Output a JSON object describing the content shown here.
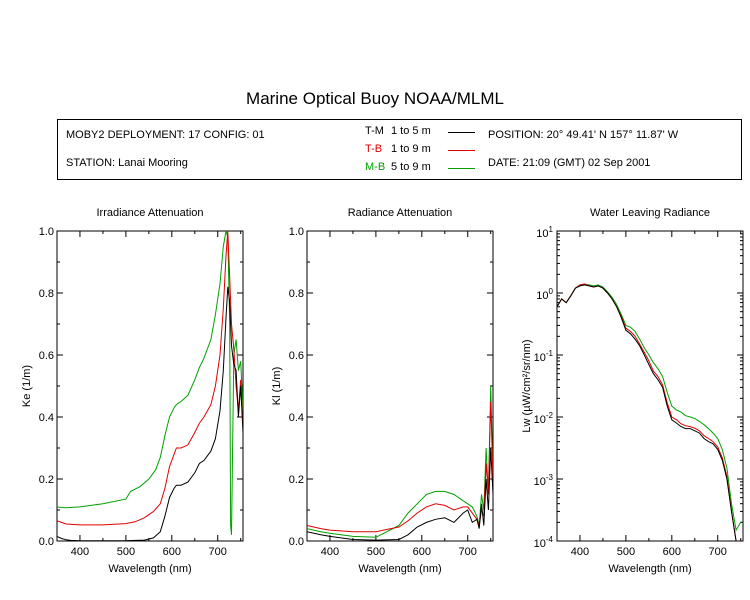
{
  "title": "Marine Optical Buoy NOAA/MLML",
  "info": {
    "deployment": "MOBY2 DEPLOYMENT: 17 CONFIG: 01",
    "station": "STATION: Lanai Mooring",
    "position": "POSITION: 20° 49.41' N   157° 11.87' W",
    "date": "DATE: 21:09 (GMT) 02 Sep 2001"
  },
  "legend": [
    {
      "name": "T-M",
      "range": "1 to 5  m",
      "color": "#000000"
    },
    {
      "name": "T-B",
      "range": "1 to 9  m",
      "color": "#e00000"
    },
    {
      "name": "M-B",
      "range": "5 to 9  m",
      "color": "#00a000"
    }
  ],
  "chart_data": [
    {
      "type": "line",
      "title": "Irradiance Attenuation",
      "xlabel": "Wavelength (nm)",
      "ylabel": "Ke  (1/m)",
      "xlim": [
        350,
        755
      ],
      "ylim": [
        0,
        1.0
      ],
      "xticks": [
        "400",
        "500",
        "600",
        "700"
      ],
      "yticks": [
        "0.0",
        "0.2",
        "0.4",
        "0.6",
        "0.8",
        "1.0"
      ],
      "series": [
        {
          "name": "T-M",
          "color": "#000000",
          "x": [
            350,
            360,
            370,
            380,
            400,
            450,
            500,
            540,
            560,
            575,
            585,
            595,
            605,
            610,
            620,
            635,
            650,
            660,
            670,
            685,
            695,
            705,
            712,
            718,
            722,
            726,
            730,
            735,
            740,
            745,
            750,
            755
          ],
          "y": [
            0.015,
            0.008,
            0.004,
            0.002,
            0.001,
            0.001,
            0.001,
            0.003,
            0.01,
            0.03,
            0.08,
            0.14,
            0.17,
            0.18,
            0.18,
            0.19,
            0.22,
            0.25,
            0.26,
            0.29,
            0.33,
            0.42,
            0.55,
            0.72,
            0.82,
            0.77,
            0.63,
            0.57,
            0.55,
            0.4,
            0.5,
            0.35
          ]
        },
        {
          "name": "T-B",
          "color": "#e00000",
          "x": [
            350,
            360,
            370,
            400,
            450,
            500,
            520,
            540,
            560,
            575,
            585,
            595,
            605,
            610,
            620,
            635,
            650,
            660,
            670,
            685,
            695,
            705,
            712,
            718,
            722,
            726,
            730,
            735,
            740,
            745,
            750,
            755
          ],
          "y": [
            0.065,
            0.06,
            0.055,
            0.052,
            0.052,
            0.056,
            0.062,
            0.075,
            0.095,
            0.12,
            0.17,
            0.24,
            0.28,
            0.3,
            0.3,
            0.31,
            0.35,
            0.38,
            0.4,
            0.44,
            0.5,
            0.6,
            0.75,
            0.92,
            1.0,
            0.85,
            0.7,
            0.62,
            0.5,
            0.42,
            0.52,
            0.36
          ]
        },
        {
          "name": "M-B",
          "color": "#00a000",
          "x": [
            350,
            360,
            370,
            400,
            450,
            500,
            510,
            530,
            550,
            565,
            575,
            585,
            595,
            605,
            610,
            620,
            635,
            650,
            660,
            670,
            685,
            695,
            705,
            712,
            718,
            722,
            726,
            728,
            730,
            735,
            740,
            745,
            750,
            755
          ],
          "y": [
            0.11,
            0.108,
            0.107,
            0.11,
            0.12,
            0.135,
            0.16,
            0.175,
            0.2,
            0.23,
            0.27,
            0.34,
            0.4,
            0.43,
            0.44,
            0.45,
            0.47,
            0.52,
            0.56,
            0.59,
            0.65,
            0.73,
            0.83,
            0.95,
            1.0,
            0.98,
            0.7,
            0.05,
            0.02,
            0.6,
            0.65,
            0.55,
            0.58,
            0.42
          ]
        }
      ]
    },
    {
      "type": "line",
      "title": "Radiance Attenuation",
      "xlabel": "Wavelength (nm)",
      "ylabel": "Kl  (1/m)",
      "xlim": [
        350,
        755
      ],
      "ylim": [
        0,
        1.0
      ],
      "xticks": [
        "400",
        "500",
        "600",
        "700"
      ],
      "yticks": [
        "0.0",
        "0.2",
        "0.4",
        "0.6",
        "0.8",
        "1.0"
      ],
      "series": [
        {
          "name": "T-M",
          "color": "#000000",
          "x": [
            350,
            380,
            400,
            450,
            500,
            550,
            570,
            590,
            610,
            630,
            650,
            670,
            690,
            700,
            710,
            720,
            725,
            730,
            735,
            740,
            745,
            750,
            755
          ],
          "y": [
            0.03,
            0.02,
            0.015,
            0.005,
            0.003,
            0.005,
            0.02,
            0.045,
            0.06,
            0.07,
            0.075,
            0.06,
            0.09,
            0.1,
            0.06,
            0.07,
            0.04,
            0.12,
            0.05,
            0.2,
            0.1,
            0.3,
            0.15
          ]
        },
        {
          "name": "T-B",
          "color": "#e00000",
          "x": [
            350,
            380,
            400,
            450,
            500,
            550,
            570,
            590,
            610,
            630,
            650,
            670,
            690,
            700,
            710,
            720,
            725,
            730,
            735,
            740,
            745,
            750,
            755
          ],
          "y": [
            0.05,
            0.04,
            0.035,
            0.03,
            0.03,
            0.045,
            0.065,
            0.09,
            0.11,
            0.12,
            0.115,
            0.1,
            0.11,
            0.11,
            0.09,
            0.07,
            0.05,
            0.1,
            0.08,
            0.25,
            0.15,
            0.45,
            0.2
          ]
        },
        {
          "name": "M-B",
          "color": "#00a000",
          "x": [
            350,
            380,
            400,
            450,
            500,
            550,
            570,
            590,
            610,
            630,
            650,
            670,
            690,
            700,
            710,
            720,
            725,
            730,
            735,
            740,
            745,
            750,
            755
          ],
          "y": [
            0.04,
            0.03,
            0.025,
            0.015,
            0.012,
            0.05,
            0.09,
            0.12,
            0.15,
            0.16,
            0.16,
            0.15,
            0.13,
            0.12,
            0.11,
            0.08,
            0.05,
            0.15,
            0.1,
            0.3,
            0.15,
            0.5,
            0.2
          ]
        }
      ]
    },
    {
      "type": "line",
      "title": "Water Leaving Radiance",
      "xlabel": "Wavelength (nm)",
      "ylabel": "Lw  (µW/cm²/sr/nm)",
      "yscale": "log",
      "xlim": [
        350,
        755
      ],
      "ylim": [
        0.0001,
        10
      ],
      "xticks": [
        "400",
        "500",
        "600",
        "700"
      ],
      "yticks": [
        {
          "base": "10",
          "exp": "1"
        },
        {
          "base": "10",
          "exp": "0"
        },
        {
          "base": "10",
          "exp": "-1"
        },
        {
          "base": "10",
          "exp": "-2"
        },
        {
          "base": "10",
          "exp": "-3"
        },
        {
          "base": "10",
          "exp": "-4"
        }
      ],
      "series": [
        {
          "name": "T-M",
          "color": "#000000",
          "x": [
            350,
            360,
            370,
            380,
            390,
            400,
            410,
            420,
            430,
            440,
            450,
            460,
            470,
            480,
            490,
            500,
            510,
            520,
            530,
            540,
            550,
            560,
            570,
            580,
            590,
            600,
            610,
            620,
            630,
            640,
            650,
            660,
            670,
            680,
            690,
            700,
            710,
            720,
            730,
            740,
            750
          ],
          "y": [
            0.6,
            0.8,
            0.7,
            0.9,
            1.2,
            1.3,
            1.35,
            1.3,
            1.25,
            1.3,
            1.2,
            1.0,
            0.8,
            0.6,
            0.4,
            0.25,
            0.22,
            0.18,
            0.14,
            0.1,
            0.07,
            0.05,
            0.04,
            0.03,
            0.015,
            0.009,
            0.008,
            0.007,
            0.0065,
            0.0065,
            0.006,
            0.0055,
            0.0045,
            0.004,
            0.0037,
            0.003,
            0.002,
            0.001,
            0.0003,
            0.0001,
            0.0001
          ]
        },
        {
          "name": "T-B",
          "color": "#e00000",
          "x": [
            350,
            360,
            370,
            380,
            390,
            400,
            410,
            420,
            430,
            440,
            450,
            460,
            470,
            480,
            490,
            500,
            510,
            520,
            530,
            540,
            550,
            560,
            570,
            580,
            590,
            600,
            610,
            620,
            630,
            640,
            650,
            660,
            670,
            680,
            690,
            700,
            710,
            720,
            730,
            740,
            750
          ],
          "y": [
            0.6,
            0.8,
            0.7,
            0.9,
            1.2,
            1.35,
            1.4,
            1.3,
            1.25,
            1.3,
            1.2,
            1.0,
            0.8,
            0.6,
            0.42,
            0.27,
            0.24,
            0.2,
            0.15,
            0.11,
            0.08,
            0.055,
            0.045,
            0.033,
            0.017,
            0.01,
            0.009,
            0.0078,
            0.0072,
            0.007,
            0.0066,
            0.006,
            0.005,
            0.0045,
            0.004,
            0.0033,
            0.0022,
            0.0011,
            0.0003,
            0.0001,
            0.0001
          ]
        },
        {
          "name": "M-B",
          "color": "#00a000",
          "x": [
            350,
            360,
            370,
            380,
            390,
            400,
            410,
            420,
            430,
            440,
            450,
            460,
            470,
            480,
            490,
            500,
            510,
            520,
            530,
            540,
            550,
            560,
            570,
            580,
            590,
            600,
            610,
            620,
            630,
            640,
            650,
            660,
            670,
            680,
            690,
            700,
            710,
            720,
            730,
            740,
            750
          ],
          "y": [
            0.6,
            0.8,
            0.7,
            0.9,
            1.2,
            1.3,
            1.38,
            1.35,
            1.3,
            1.35,
            1.25,
            1.05,
            0.85,
            0.65,
            0.45,
            0.3,
            0.28,
            0.24,
            0.18,
            0.13,
            0.1,
            0.075,
            0.06,
            0.045,
            0.025,
            0.015,
            0.013,
            0.012,
            0.0105,
            0.01,
            0.0095,
            0.0085,
            0.0075,
            0.0065,
            0.0055,
            0.0045,
            0.003,
            0.0015,
            0.0004,
            0.00015,
            0.0002
          ]
        }
      ]
    }
  ]
}
